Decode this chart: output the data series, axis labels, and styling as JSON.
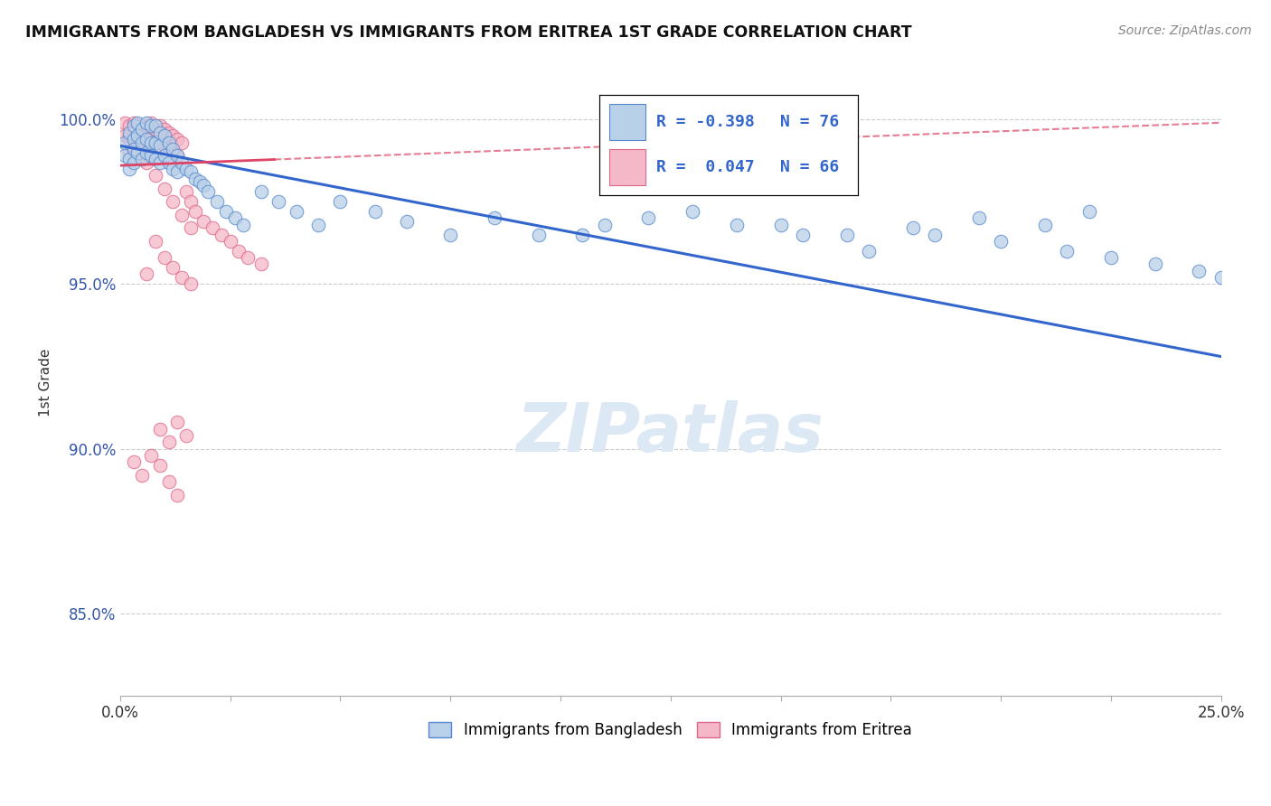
{
  "title": "IMMIGRANTS FROM BANGLADESH VS IMMIGRANTS FROM ERITREA 1ST GRADE CORRELATION CHART",
  "source": "Source: ZipAtlas.com",
  "ylabel": "1st Grade",
  "y_ticks": [
    0.85,
    0.9,
    0.95,
    1.0
  ],
  "y_tick_labels": [
    "85.0%",
    "90.0%",
    "95.0%",
    "100.0%"
  ],
  "xlim": [
    0.0,
    0.25
  ],
  "ylim": [
    0.825,
    1.015
  ],
  "bangladesh_color": "#b8d0e8",
  "eritrea_color": "#f5b8c8",
  "bangladesh_edge": "#5588cc",
  "eritrea_edge": "#dd6688",
  "trend_bangladesh_color": "#3366cc",
  "trend_eritrea_color": "#dd4466",
  "legend_label_bangladesh": "Immigrants from Bangladesh",
  "legend_label_eritrea": "Immigrants from Eritrea",
  "R_bangladesh": -0.398,
  "N_bangladesh": 76,
  "R_eritrea": 0.047,
  "N_eritrea": 66,
  "trend_b_x0": 0.0,
  "trend_b_y0": 0.992,
  "trend_b_x1": 0.25,
  "trend_b_y1": 0.928,
  "trend_e_x0": 0.0,
  "trend_e_y0": 0.986,
  "trend_e_x1": 0.25,
  "trend_e_y1": 0.999,
  "bangladesh_x": [
    0.001,
    0.001,
    0.002,
    0.002,
    0.002,
    0.003,
    0.003,
    0.003,
    0.003,
    0.004,
    0.004,
    0.004,
    0.005,
    0.005,
    0.005,
    0.006,
    0.006,
    0.006,
    0.007,
    0.007,
    0.007,
    0.008,
    0.008,
    0.008,
    0.009,
    0.009,
    0.009,
    0.01,
    0.01,
    0.011,
    0.011,
    0.012,
    0.012,
    0.013,
    0.013,
    0.014,
    0.015,
    0.016,
    0.017,
    0.018,
    0.019,
    0.02,
    0.022,
    0.024,
    0.026,
    0.028,
    0.032,
    0.036,
    0.04,
    0.045,
    0.05,
    0.058,
    0.065,
    0.075,
    0.085,
    0.095,
    0.11,
    0.13,
    0.15,
    0.165,
    0.18,
    0.195,
    0.21,
    0.22,
    0.105,
    0.12,
    0.14,
    0.155,
    0.17,
    0.185,
    0.2,
    0.215,
    0.225,
    0.235,
    0.245,
    0.25
  ],
  "bangladesh_y": [
    0.993,
    0.989,
    0.996,
    0.988,
    0.985,
    0.998,
    0.994,
    0.991,
    0.987,
    0.999,
    0.995,
    0.99,
    0.997,
    0.993,
    0.988,
    0.999,
    0.994,
    0.99,
    0.998,
    0.993,
    0.989,
    0.998,
    0.993,
    0.988,
    0.996,
    0.992,
    0.987,
    0.995,
    0.989,
    0.993,
    0.987,
    0.991,
    0.985,
    0.989,
    0.984,
    0.987,
    0.985,
    0.984,
    0.982,
    0.981,
    0.98,
    0.978,
    0.975,
    0.972,
    0.97,
    0.968,
    0.978,
    0.975,
    0.972,
    0.968,
    0.975,
    0.972,
    0.969,
    0.965,
    0.97,
    0.965,
    0.968,
    0.972,
    0.968,
    0.965,
    0.967,
    0.97,
    0.968,
    0.972,
    0.965,
    0.97,
    0.968,
    0.965,
    0.96,
    0.965,
    0.963,
    0.96,
    0.958,
    0.956,
    0.954,
    0.952
  ],
  "eritrea_x": [
    0.001,
    0.001,
    0.002,
    0.002,
    0.002,
    0.003,
    0.003,
    0.003,
    0.004,
    0.004,
    0.004,
    0.005,
    0.005,
    0.005,
    0.006,
    0.006,
    0.007,
    0.007,
    0.007,
    0.008,
    0.008,
    0.009,
    0.009,
    0.01,
    0.01,
    0.011,
    0.011,
    0.012,
    0.012,
    0.013,
    0.013,
    0.014,
    0.015,
    0.016,
    0.017,
    0.019,
    0.021,
    0.023,
    0.025,
    0.027,
    0.029,
    0.032,
    0.006,
    0.008,
    0.01,
    0.012,
    0.014,
    0.016,
    0.009,
    0.011,
    0.013,
    0.015,
    0.003,
    0.005,
    0.007,
    0.009,
    0.011,
    0.013,
    0.002,
    0.004,
    0.006,
    0.008,
    0.01,
    0.012,
    0.014,
    0.016
  ],
  "eritrea_y": [
    0.999,
    0.995,
    0.998,
    0.994,
    0.99,
    0.999,
    0.995,
    0.991,
    0.998,
    0.994,
    0.99,
    0.997,
    0.993,
    0.989,
    0.998,
    0.994,
    0.999,
    0.995,
    0.99,
    0.997,
    0.993,
    0.998,
    0.993,
    0.997,
    0.992,
    0.996,
    0.991,
    0.995,
    0.99,
    0.994,
    0.989,
    0.993,
    0.978,
    0.975,
    0.972,
    0.969,
    0.967,
    0.965,
    0.963,
    0.96,
    0.958,
    0.956,
    0.953,
    0.963,
    0.958,
    0.955,
    0.952,
    0.95,
    0.906,
    0.902,
    0.908,
    0.904,
    0.896,
    0.892,
    0.898,
    0.895,
    0.89,
    0.886,
    0.995,
    0.991,
    0.987,
    0.983,
    0.979,
    0.975,
    0.971,
    0.967
  ]
}
